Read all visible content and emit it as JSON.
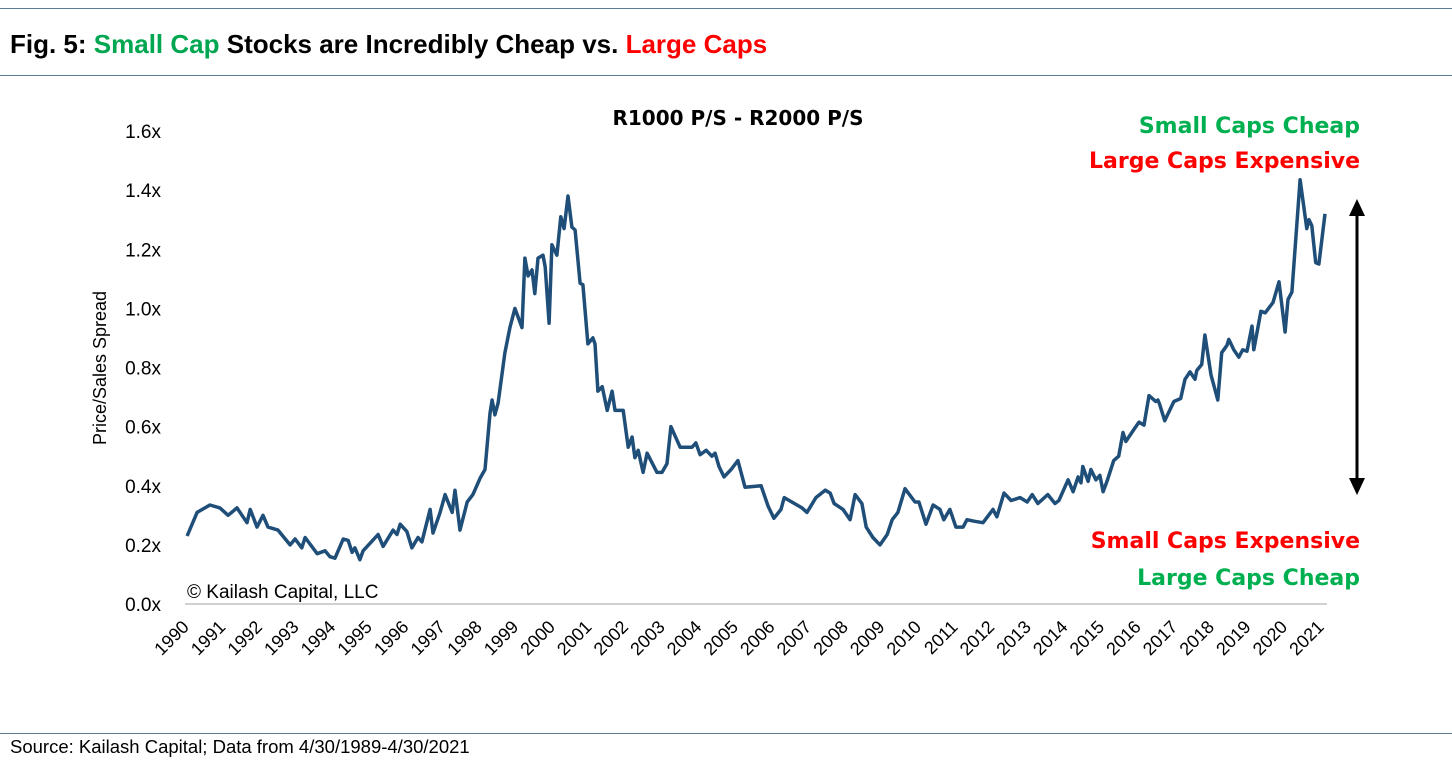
{
  "header": {
    "prefix": "Fig. 5: ",
    "highlight_green": "Small Cap",
    "middle": " Stocks are Incredibly Cheap vs. ",
    "highlight_red": "Large Caps"
  },
  "footer": {
    "source": "Source: Kailash Capital; Data from 4/30/1989-4/30/2021"
  },
  "colors": {
    "line": "#1f4e79",
    "green": "#00b050",
    "red": "#ff0000",
    "rule": "#5d7a93",
    "arrow": "#000000"
  },
  "chart_data": {
    "type": "line",
    "title": "R1000 P/S - R2000 P/S",
    "ylabel": "Price/Sales Spread",
    "xlabel": "",
    "ylim": [
      0,
      1.6
    ],
    "xlim": [
      1989.33,
      2021.33
    ],
    "yticks": [
      "0.0x",
      "0.2x",
      "0.4x",
      "0.6x",
      "0.8x",
      "1.0x",
      "1.2x",
      "1.4x",
      "1.6x"
    ],
    "xticks": [
      "1990",
      "1991",
      "1992",
      "1993",
      "1994",
      "1995",
      "1996",
      "1997",
      "1998",
      "1999",
      "2000",
      "2001",
      "2002",
      "2003",
      "2004",
      "2005",
      "2006",
      "2007",
      "2008",
      "2009",
      "2010",
      "2011",
      "2012",
      "2013",
      "2014",
      "2015",
      "2016",
      "2017",
      "2018",
      "2019",
      "2020",
      "2021"
    ],
    "grid": false,
    "legend": "none",
    "watermark": "© Kailash Capital, LLC",
    "annotations": {
      "top": [
        "Small Caps Cheap",
        "Large Caps Expensive"
      ],
      "bottom": [
        "Small Caps Expensive",
        "Large Caps Cheap"
      ]
    },
    "series": [
      {
        "x": [
          1989.39,
          1989.67,
          1990.03,
          1990.31,
          1990.54,
          1990.79,
          1991.07,
          1991.16,
          1991.35,
          1991.52,
          1991.66,
          1991.94,
          1992.28,
          1992.42,
          1992.61,
          1992.7,
          1993.04,
          1993.26,
          1993.4,
          1993.54,
          1993.77,
          1993.91,
          1994.02,
          1994.1,
          1994.24,
          1994.33,
          1994.52,
          1994.75,
          1994.89,
          1995.17,
          1995.28,
          1995.37,
          1995.56,
          1995.7,
          1995.87,
          1995.98,
          1996.21,
          1996.29,
          1996.49,
          1996.63,
          1996.83,
          1996.91,
          1997.05,
          1997.25,
          1997.41,
          1997.61,
          1997.75,
          1997.89,
          1997.95,
          1998.03,
          1998.12,
          1998.31,
          1998.45,
          1998.59,
          1998.79,
          1998.87,
          1998.96,
          1999.07,
          1999.15,
          1999.24,
          1999.38,
          1999.44,
          1999.55,
          1999.63,
          1999.77,
          1999.88,
          1999.97,
          2000.08,
          2000.19,
          2000.28,
          2000.42,
          2000.5,
          2000.64,
          2000.78,
          2000.84,
          2000.92,
          2001.04,
          2001.18,
          2001.32,
          2001.4,
          2001.63,
          2001.77,
          2001.88,
          2001.96,
          2002.05,
          2002.19,
          2002.3,
          2002.58,
          2002.72,
          2002.86,
          2002.97,
          2003.23,
          2003.56,
          2003.67,
          2003.79,
          2003.96,
          2004.12,
          2004.21,
          2004.32,
          2004.46,
          2004.66,
          2004.85,
          2005.05,
          2005.5,
          2005.7,
          2005.86,
          2006.06,
          2006.15,
          2006.51,
          2006.65,
          2006.79,
          2007.04,
          2007.3,
          2007.44,
          2007.55,
          2007.8,
          2008.0,
          2008.14,
          2008.33,
          2008.45,
          2008.64,
          2008.84,
          2009.04,
          2009.18,
          2009.34,
          2009.54,
          2009.82,
          2009.93,
          2010.13,
          2010.33,
          2010.52,
          2010.63,
          2010.8,
          2010.97,
          2011.17,
          2011.28,
          2011.48,
          2011.73,
          2012.01,
          2012.12,
          2012.32,
          2012.52,
          2012.77,
          2012.97,
          2013.11,
          2013.27,
          2013.55,
          2013.75,
          2013.86,
          2014.12,
          2014.26,
          2014.4,
          2014.48,
          2014.53,
          2014.68,
          2014.76,
          2014.9,
          2015.01,
          2015.1,
          2015.21,
          2015.4,
          2015.54,
          2015.66,
          2015.74,
          2015.99,
          2016.11,
          2016.25,
          2016.39,
          2016.58,
          2016.64,
          2016.69,
          2016.83,
          2017.09,
          2017.28,
          2017.4,
          2017.54,
          2017.68,
          2017.73,
          2017.87,
          2017.96,
          2018.13,
          2018.32,
          2018.43,
          2018.58,
          2018.63,
          2018.77,
          2018.91,
          2019.02,
          2019.14,
          2019.28,
          2019.33,
          2019.53,
          2019.65,
          2019.87,
          2020.04,
          2020.21,
          2020.29,
          2020.4,
          2020.63,
          2020.82,
          2020.88,
          2020.96,
          2021.07,
          2021.16,
          2021.33
        ],
        "y": [
          0.23,
          0.31,
          0.335,
          0.325,
          0.3,
          0.325,
          0.275,
          0.32,
          0.26,
          0.3,
          0.26,
          0.25,
          0.2,
          0.22,
          0.19,
          0.225,
          0.17,
          0.18,
          0.16,
          0.155,
          0.22,
          0.215,
          0.175,
          0.19,
          0.15,
          0.18,
          0.205,
          0.235,
          0.195,
          0.25,
          0.235,
          0.27,
          0.245,
          0.19,
          0.225,
          0.21,
          0.32,
          0.24,
          0.31,
          0.37,
          0.31,
          0.385,
          0.25,
          0.345,
          0.37,
          0.425,
          0.455,
          0.645,
          0.69,
          0.64,
          0.68,
          0.85,
          0.935,
          1.0,
          0.935,
          1.17,
          1.11,
          1.13,
          1.05,
          1.17,
          1.18,
          1.14,
          0.95,
          1.215,
          1.18,
          1.31,
          1.27,
          1.38,
          1.275,
          1.265,
          1.085,
          1.08,
          0.88,
          0.9,
          0.88,
          0.72,
          0.735,
          0.655,
          0.72,
          0.655,
          0.655,
          0.53,
          0.565,
          0.495,
          0.52,
          0.445,
          0.51,
          0.445,
          0.445,
          0.475,
          0.6,
          0.53,
          0.53,
          0.545,
          0.505,
          0.52,
          0.5,
          0.51,
          0.465,
          0.43,
          0.455,
          0.485,
          0.395,
          0.4,
          0.33,
          0.29,
          0.32,
          0.36,
          0.335,
          0.325,
          0.31,
          0.36,
          0.385,
          0.375,
          0.34,
          0.32,
          0.285,
          0.37,
          0.34,
          0.26,
          0.225,
          0.2,
          0.235,
          0.285,
          0.31,
          0.39,
          0.345,
          0.345,
          0.27,
          0.335,
          0.32,
          0.285,
          0.32,
          0.26,
          0.26,
          0.285,
          0.28,
          0.275,
          0.32,
          0.295,
          0.375,
          0.35,
          0.36,
          0.345,
          0.37,
          0.34,
          0.37,
          0.34,
          0.35,
          0.42,
          0.38,
          0.43,
          0.41,
          0.465,
          0.415,
          0.455,
          0.42,
          0.435,
          0.38,
          0.415,
          0.485,
          0.5,
          0.58,
          0.55,
          0.595,
          0.615,
          0.605,
          0.705,
          0.685,
          0.69,
          0.675,
          0.62,
          0.685,
          0.695,
          0.76,
          0.785,
          0.76,
          0.79,
          0.81,
          0.91,
          0.775,
          0.69,
          0.85,
          0.875,
          0.895,
          0.86,
          0.835,
          0.86,
          0.855,
          0.94,
          0.86,
          0.99,
          0.985,
          1.02,
          1.09,
          0.92,
          1.03,
          1.055,
          1.435,
          1.27,
          1.3,
          1.28,
          1.155,
          1.15,
          1.32
        ]
      }
    ]
  }
}
